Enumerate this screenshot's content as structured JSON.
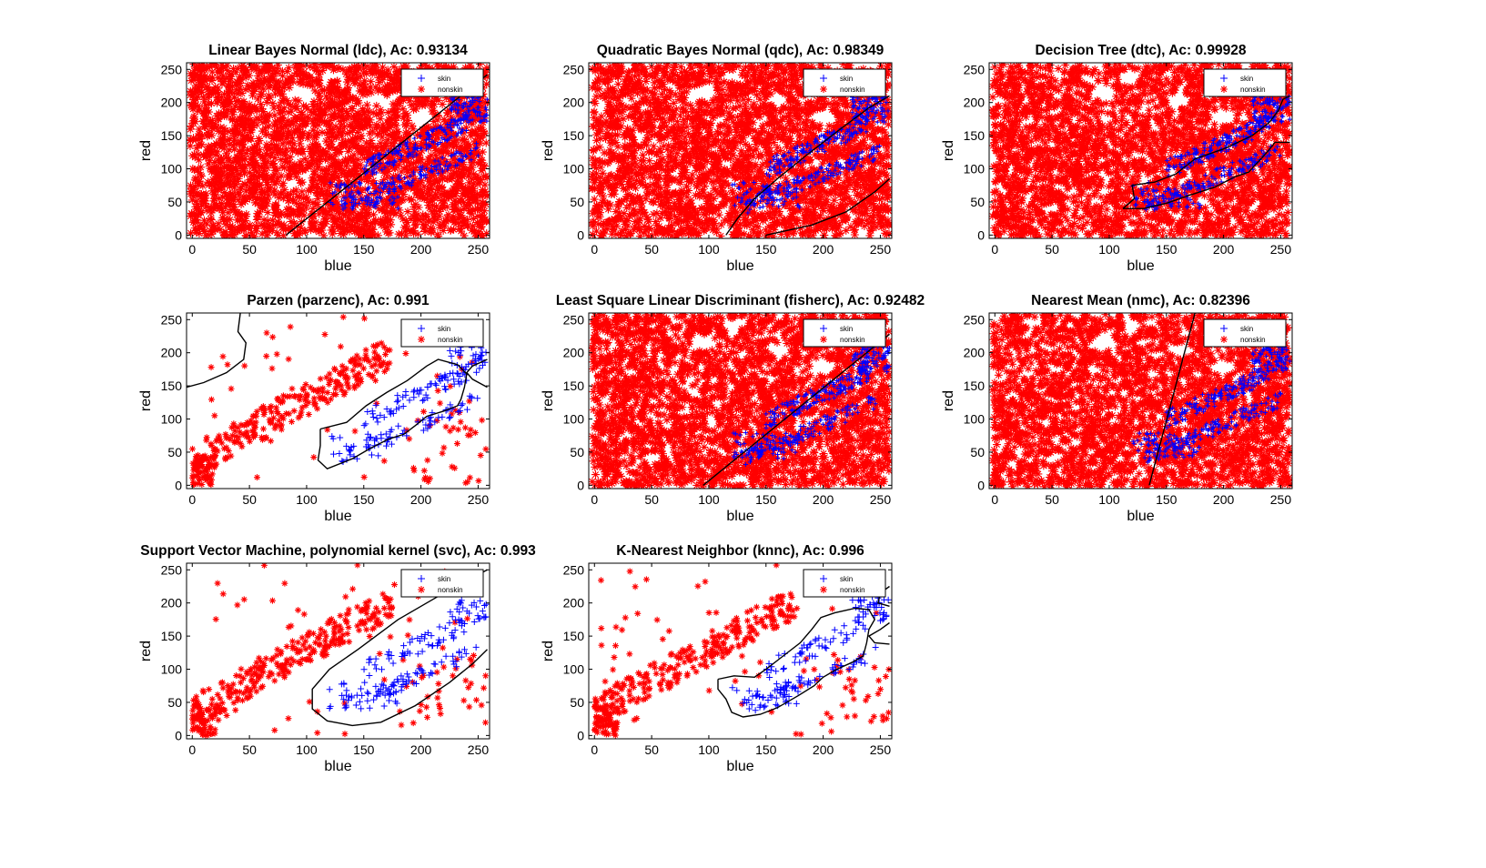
{
  "figure": {
    "background": "#ffffff"
  },
  "colors": {
    "skin": "#0000ff",
    "nonskin": "#ff0000",
    "boundary": "#000000",
    "axes": "#000000"
  },
  "chart_data": [
    {
      "type": "scatter",
      "title": "Linear Bayes Normal (ldc), Ac: 0.93134",
      "xlabel": "blue",
      "ylabel": "red",
      "xlim": [
        -5,
        260
      ],
      "ylim": [
        -5,
        260
      ],
      "xticks": [
        0,
        50,
        100,
        150,
        200,
        250
      ],
      "yticks": [
        0,
        50,
        100,
        150,
        200,
        250
      ],
      "legend_position": "top-right",
      "legend": [
        "skin",
        "nonskin"
      ],
      "background_cloud": "dense",
      "decision_boundary": [
        [
          [
            82,
            0
          ],
          [
            258,
            242
          ]
        ]
      ]
    },
    {
      "type": "scatter",
      "title": "Quadratic Bayes Normal (qdc), Ac: 0.98349",
      "xlabel": "blue",
      "ylabel": "red",
      "xlim": [
        -5,
        260
      ],
      "ylim": [
        -5,
        260
      ],
      "xticks": [
        0,
        50,
        100,
        150,
        200,
        250
      ],
      "yticks": [
        0,
        50,
        100,
        150,
        200,
        250
      ],
      "legend_position": "top-right",
      "legend": [
        "skin",
        "nonskin"
      ],
      "background_cloud": "dense",
      "decision_boundary": [
        [
          [
            115,
            0
          ],
          [
            125,
            25
          ],
          [
            140,
            55
          ],
          [
            160,
            85
          ],
          [
            185,
            120
          ],
          [
            215,
            160
          ],
          [
            240,
            192
          ],
          [
            258,
            210
          ]
        ],
        [
          [
            150,
            0
          ],
          [
            190,
            15
          ],
          [
            220,
            35
          ],
          [
            245,
            65
          ],
          [
            258,
            85
          ]
        ]
      ]
    },
    {
      "type": "scatter",
      "title": "Decision Tree (dtc), Ac: 0.99928",
      "xlabel": "blue",
      "ylabel": "red",
      "xlim": [
        -5,
        260
      ],
      "ylim": [
        -5,
        260
      ],
      "xticks": [
        0,
        50,
        100,
        150,
        200,
        250
      ],
      "yticks": [
        0,
        50,
        100,
        150,
        200,
        250
      ],
      "legend_position": "top-right",
      "legend": [
        "skin",
        "nonskin"
      ],
      "background_cloud": "dense",
      "decision_boundary": [
        [
          [
            112,
            40
          ],
          [
            122,
            55
          ],
          [
            120,
            75
          ],
          [
            140,
            80
          ],
          [
            158,
            92
          ],
          [
            175,
            115
          ],
          [
            200,
            130
          ],
          [
            225,
            150
          ],
          [
            240,
            170
          ],
          [
            248,
            188
          ],
          [
            252,
            205
          ],
          [
            258,
            210
          ]
        ],
        [
          [
            112,
            40
          ],
          [
            130,
            40
          ],
          [
            150,
            48
          ],
          [
            170,
            60
          ],
          [
            192,
            72
          ],
          [
            210,
            88
          ],
          [
            222,
            95
          ],
          [
            230,
            110
          ],
          [
            238,
            125
          ],
          [
            245,
            140
          ],
          [
            258,
            140
          ]
        ]
      ]
    },
    {
      "type": "scatter",
      "title": "Parzen (parzenc), Ac: 0.991",
      "xlabel": "blue",
      "ylabel": "red",
      "xlim": [
        -5,
        260
      ],
      "ylim": [
        -5,
        260
      ],
      "xticks": [
        0,
        50,
        100,
        150,
        200,
        250
      ],
      "yticks": [
        0,
        50,
        100,
        150,
        200,
        250
      ],
      "legend_position": "top-right",
      "legend": [
        "skin",
        "nonskin"
      ],
      "background_cloud": "sparse",
      "decision_boundary": [
        [
          [
            -5,
            148
          ],
          [
            10,
            155
          ],
          [
            30,
            170
          ],
          [
            45,
            190
          ],
          [
            47,
            215
          ],
          [
            40,
            232
          ],
          [
            42,
            260
          ]
        ],
        [
          [
            112,
            85
          ],
          [
            135,
            95
          ],
          [
            152,
            120
          ],
          [
            170,
            140
          ],
          [
            188,
            158
          ],
          [
            205,
            180
          ],
          [
            215,
            190
          ],
          [
            232,
            182
          ],
          [
            240,
            168
          ],
          [
            238,
            148
          ],
          [
            235,
            130
          ],
          [
            232,
            120
          ],
          [
            220,
            112
          ],
          [
            205,
            104
          ],
          [
            195,
            90
          ],
          [
            185,
            77
          ],
          [
            172,
            70
          ],
          [
            155,
            55
          ],
          [
            140,
            40
          ],
          [
            118,
            25
          ],
          [
            110,
            38
          ],
          [
            112,
            60
          ],
          [
            112,
            85
          ]
        ],
        [
          [
            258,
            190
          ],
          [
            245,
            180
          ],
          [
            240,
            170
          ],
          [
            245,
            160
          ],
          [
            258,
            148
          ]
        ]
      ]
    },
    {
      "type": "scatter",
      "title": "Least Square Linear Discriminant (fisherc), Ac: 0.92482",
      "xlabel": "blue",
      "ylabel": "red",
      "xlim": [
        -5,
        260
      ],
      "ylim": [
        -5,
        260
      ],
      "xticks": [
        0,
        50,
        100,
        150,
        200,
        250
      ],
      "yticks": [
        0,
        50,
        100,
        150,
        200,
        250
      ],
      "legend_position": "top-right",
      "legend": [
        "skin",
        "nonskin"
      ],
      "background_cloud": "dense",
      "decision_boundary": [
        [
          [
            95,
            0
          ],
          [
            258,
            228
          ]
        ]
      ]
    },
    {
      "type": "scatter",
      "title": "Nearest Mean (nmc), Ac: 0.82396",
      "xlabel": "blue",
      "ylabel": "red",
      "xlim": [
        -5,
        260
      ],
      "ylim": [
        -5,
        260
      ],
      "xticks": [
        0,
        50,
        100,
        150,
        200,
        250
      ],
      "yticks": [
        0,
        50,
        100,
        150,
        200,
        250
      ],
      "legend_position": "top-right",
      "legend": [
        "skin",
        "nonskin"
      ],
      "background_cloud": "dense",
      "decision_boundary": [
        [
          [
            135,
            0
          ],
          [
            175,
            260
          ]
        ]
      ]
    },
    {
      "type": "scatter",
      "title": "Support Vector Machine, polynomial kernel (svc), Ac: 0.993",
      "xlabel": "blue",
      "ylabel": "red",
      "xlim": [
        -5,
        260
      ],
      "ylim": [
        -5,
        260
      ],
      "xticks": [
        0,
        50,
        100,
        150,
        200,
        250
      ],
      "yticks": [
        0,
        50,
        100,
        150,
        200,
        250
      ],
      "legend_position": "top-right",
      "legend": [
        "skin",
        "nonskin"
      ],
      "background_cloud": "sparse",
      "decision_boundary": [
        [
          [
            258,
            250
          ],
          [
            220,
            215
          ],
          [
            180,
            175
          ],
          [
            145,
            130
          ],
          [
            120,
            100
          ],
          [
            105,
            70
          ],
          [
            105,
            40
          ],
          [
            118,
            22
          ],
          [
            140,
            15
          ],
          [
            165,
            20
          ],
          [
            195,
            45
          ],
          [
            225,
            80
          ],
          [
            245,
            108
          ],
          [
            258,
            130
          ]
        ]
      ]
    },
    {
      "type": "scatter",
      "title": "K-Nearest Neighbor (knnc), Ac: 0.996",
      "xlabel": "blue",
      "ylabel": "red",
      "xlim": [
        -5,
        260
      ],
      "ylim": [
        -5,
        260
      ],
      "xticks": [
        0,
        50,
        100,
        150,
        200,
        250
      ],
      "yticks": [
        0,
        50,
        100,
        150,
        200,
        250
      ],
      "legend_position": "top-right",
      "legend": [
        "skin",
        "nonskin"
      ],
      "background_cloud": "sparse",
      "decision_boundary": [
        [
          [
            108,
            85
          ],
          [
            122,
            90
          ],
          [
            140,
            88
          ],
          [
            150,
            100
          ],
          [
            165,
            120
          ],
          [
            180,
            140
          ],
          [
            190,
            160
          ],
          [
            198,
            178
          ],
          [
            210,
            185
          ],
          [
            228,
            192
          ],
          [
            240,
            190
          ],
          [
            245,
            175
          ],
          [
            240,
            160
          ],
          [
            238,
            140
          ],
          [
            235,
            120
          ],
          [
            225,
            110
          ],
          [
            212,
            100
          ],
          [
            200,
            88
          ],
          [
            192,
            75
          ],
          [
            178,
            60
          ],
          [
            160,
            42
          ],
          [
            145,
            32
          ],
          [
            130,
            28
          ],
          [
            120,
            35
          ],
          [
            115,
            55
          ],
          [
            108,
            70
          ],
          [
            108,
            85
          ]
        ],
        [
          [
            258,
            225
          ],
          [
            250,
            215
          ],
          [
            248,
            200
          ],
          [
            258,
            195
          ]
        ],
        [
          [
            258,
            170
          ],
          [
            250,
            160
          ],
          [
            240,
            150
          ],
          [
            245,
            140
          ],
          [
            258,
            138
          ]
        ]
      ]
    }
  ]
}
